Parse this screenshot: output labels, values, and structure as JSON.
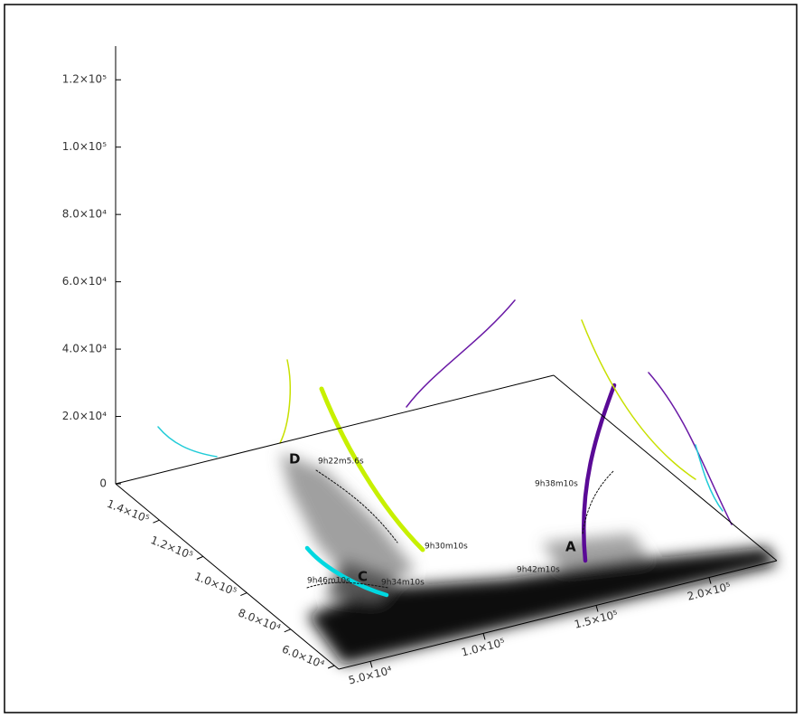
{
  "chart_data": {
    "type": "3d-field-lines",
    "xlim": [
      36000,
      230000
    ],
    "xticks": [
      {
        "value": 50000,
        "label": "5.0×10⁴"
      },
      {
        "value": 100000,
        "label": "1.0×10⁵"
      },
      {
        "value": 150000,
        "label": "1.5×10⁵"
      },
      {
        "value": 200000,
        "label": "2.0×10⁵"
      }
    ],
    "ylim": [
      58000,
      160000
    ],
    "yticks": [
      {
        "value": 60000,
        "label": "6.0×10⁴"
      },
      {
        "value": 80000,
        "label": "8.0×10⁴"
      },
      {
        "value": 100000,
        "label": "1.0×10⁵"
      },
      {
        "value": 120000,
        "label": "1.2×10⁵"
      },
      {
        "value": 140000,
        "label": "1.4×10⁵"
      }
    ],
    "zlim": [
      0,
      130000
    ],
    "zticks": [
      0,
      {
        "value": 20000,
        "label": "2.0×10⁴"
      },
      {
        "value": 40000,
        "label": "4.0×10⁴"
      },
      {
        "value": 60000,
        "label": "6.0×10⁴"
      },
      {
        "value": 80000,
        "label": "8.0×10⁴"
      },
      {
        "value": 100000,
        "label": "1.0×10⁵"
      },
      {
        "value": 120000,
        "label": "1.2×10⁵"
      }
    ],
    "annotations": [
      "D",
      "C",
      "A",
      "9h22m5.6s",
      "9h30m10s",
      "9h34m10s",
      "9h38m10s",
      "9h46m10s",
      "9h42m10s"
    ]
  }
}
